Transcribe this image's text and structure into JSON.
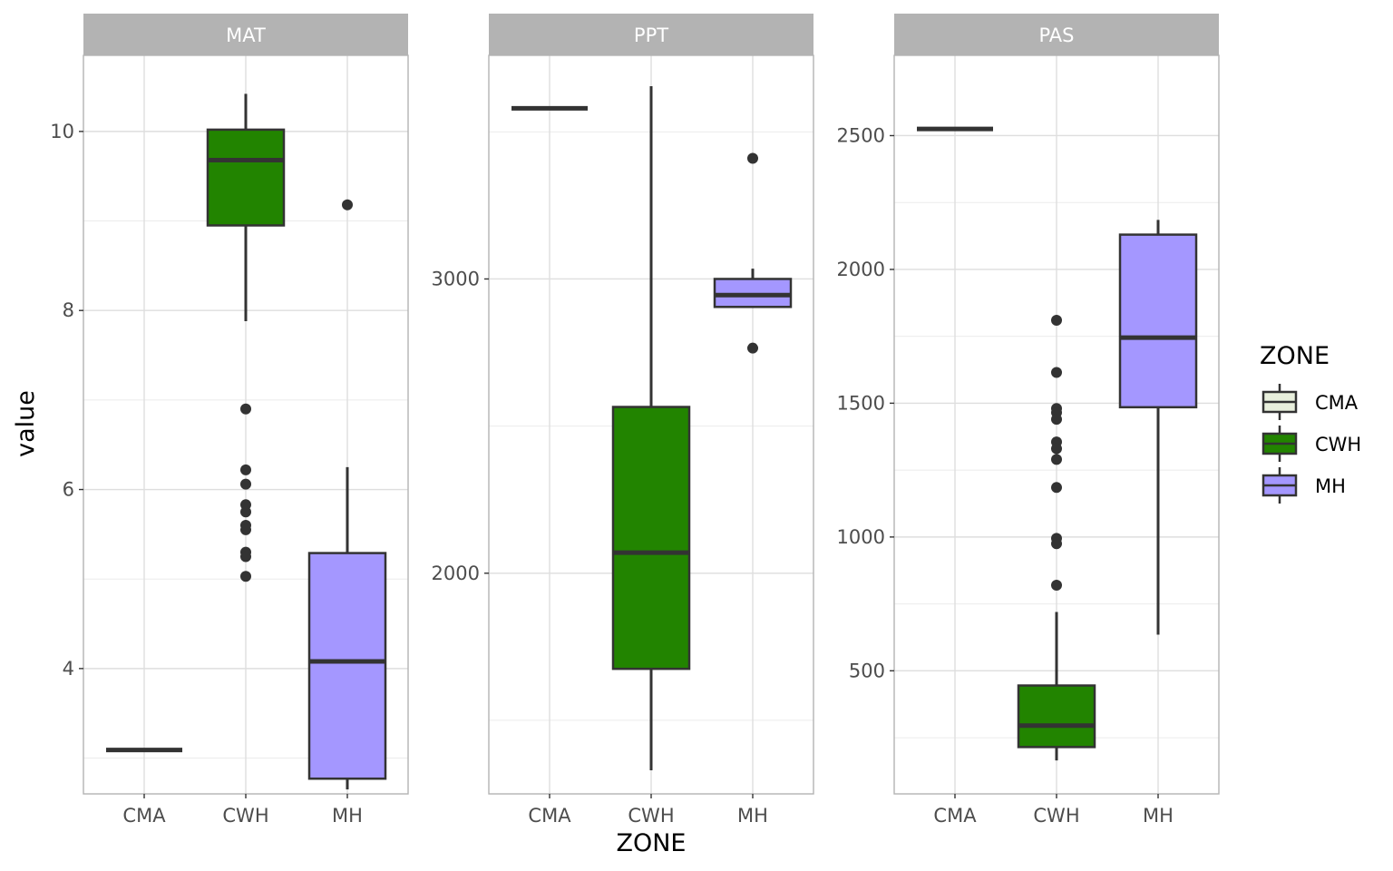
{
  "chart_data": {
    "type": "boxplot",
    "xlabel": "ZONE",
    "ylabel": "value",
    "categories": [
      "CMA",
      "CWH",
      "MH"
    ],
    "colors": {
      "CMA": "#e8efdc",
      "CWH": "#228400",
      "MH": "#a497ff"
    },
    "legend": {
      "title": "ZONE",
      "position": "right",
      "entries": [
        "CMA",
        "CWH",
        "MH"
      ]
    },
    "grid": true,
    "panels": [
      {
        "title": "MAT",
        "ylim": [
          2.6,
          10.85
        ],
        "yticks": [
          4,
          6,
          8,
          10
        ],
        "minor_yticks": [
          3,
          5,
          7,
          9
        ],
        "boxes": [
          {
            "zone": "CMA",
            "min": 3.09,
            "q1": 3.09,
            "median": 3.09,
            "q3": 3.09,
            "max": 3.09,
            "outliers": []
          },
          {
            "zone": "CWH",
            "min": 7.88,
            "q1": 8.95,
            "median": 9.68,
            "q3": 10.02,
            "max": 10.42,
            "outliers": [
              6.9,
              6.22,
              6.06,
              5.83,
              5.75,
              5.6,
              5.55,
              5.3,
              5.25,
              5.03
            ]
          },
          {
            "zone": "MH",
            "min": 2.65,
            "q1": 2.77,
            "median": 4.08,
            "q3": 5.29,
            "max": 6.25,
            "outliers": [
              9.18
            ]
          }
        ]
      },
      {
        "title": "PPT",
        "ylim": [
          1250,
          3760
        ],
        "yticks": [
          2000,
          3000
        ],
        "minor_yticks": [
          1500,
          2500,
          3500
        ],
        "boxes": [
          {
            "zone": "CMA",
            "min": 3580,
            "q1": 3580,
            "median": 3580,
            "q3": 3580,
            "max": 3580,
            "outliers": []
          },
          {
            "zone": "CWH",
            "min": 1330,
            "q1": 1675,
            "median": 2070,
            "q3": 2565,
            "max": 3655,
            "outliers": []
          },
          {
            "zone": "MH",
            "min": 2905,
            "q1": 2905,
            "median": 2945,
            "q3": 3000,
            "max": 3035,
            "outliers": [
              3410,
              2765
            ]
          }
        ]
      },
      {
        "title": "PAS",
        "ylim": [
          40,
          2800
        ],
        "yticks": [
          500,
          1000,
          1500,
          2000,
          2500
        ],
        "minor_yticks": [
          250,
          750,
          1250,
          1750,
          2250
        ],
        "boxes": [
          {
            "zone": "CMA",
            "min": 2525,
            "q1": 2525,
            "median": 2525,
            "q3": 2525,
            "max": 2525,
            "outliers": []
          },
          {
            "zone": "CWH",
            "min": 165,
            "q1": 215,
            "median": 295,
            "q3": 445,
            "max": 720,
            "outliers": [
              1810,
              1615,
              1480,
              1465,
              1440,
              1355,
              1330,
              1290,
              1185,
              995,
              975,
              820
            ]
          },
          {
            "zone": "MH",
            "min": 635,
            "q1": 1485,
            "median": 1745,
            "q3": 2130,
            "max": 2185,
            "outliers": []
          }
        ]
      }
    ]
  }
}
